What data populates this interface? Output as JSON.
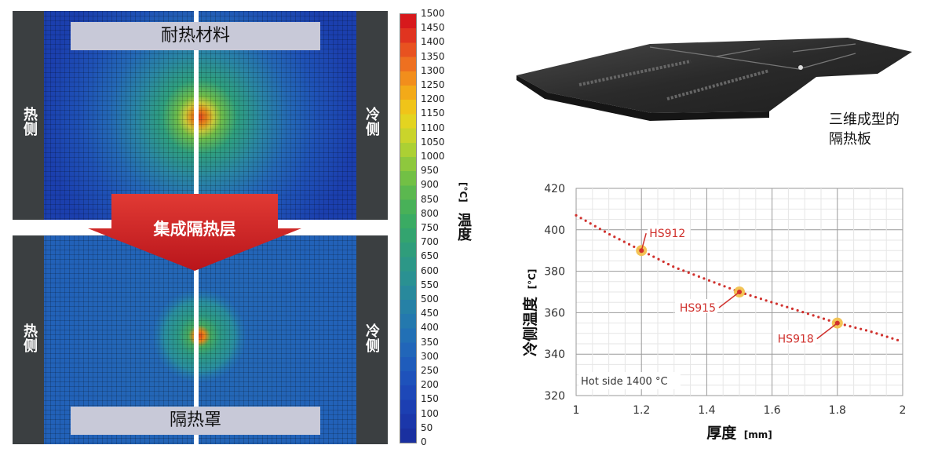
{
  "simulation": {
    "top_title": "耐热材料",
    "bottom_title": "隔热罩",
    "hot_label": "热侧",
    "cold_label": "冷侧",
    "arrow_label": "集成隔热层"
  },
  "colorbar": {
    "title": "温度",
    "unit": "[°C]",
    "ticks": [
      "1500",
      "1450",
      "1400",
      "1350",
      "1300",
      "1250",
      "1200",
      "1150",
      "1100",
      "1050",
      "1000",
      "950",
      "900",
      "850",
      "800",
      "750",
      "700",
      "650",
      "600",
      "550",
      "500",
      "450",
      "400",
      "350",
      "300",
      "250",
      "200",
      "150",
      "100",
      "50",
      "0"
    ],
    "colors": [
      "#d7191c",
      "#e03420",
      "#e85220",
      "#ee7020",
      "#f28e1c",
      "#f3aa18",
      "#f0c419",
      "#e3d420",
      "#cad42b",
      "#acd033",
      "#8ec83d",
      "#72c045",
      "#5bb84f",
      "#48b158",
      "#3aab63",
      "#33a46f",
      "#2f9d7b",
      "#2c9787",
      "#2a9192",
      "#28899c",
      "#2681a6",
      "#2479ae",
      "#2270b5",
      "#2166b9",
      "#1f5cbb",
      "#1e52bb",
      "#1d48b8",
      "#1c3fb2",
      "#1b37aa",
      "#1a30a0"
    ]
  },
  "panel": {
    "caption_line1": "三维成型的",
    "caption_line2": "隔热板"
  },
  "chart_data": {
    "type": "line",
    "xlabel": "厚度",
    "xunit": "[mm]",
    "ylabel": "冷侧温度",
    "yunit": "[°C]",
    "xlim": [
      1,
      2
    ],
    "ylim": [
      320,
      420
    ],
    "xticks": [
      "1",
      "1.2",
      "1.4",
      "1.6",
      "1.8",
      "2"
    ],
    "yticks": [
      "320",
      "340",
      "360",
      "380",
      "400",
      "420"
    ],
    "annotation": "Hot side 1400 °C",
    "grid": true,
    "series": [
      {
        "style": "dotted",
        "color": "#d0312d",
        "x": [
          1.0,
          1.1,
          1.2,
          1.3,
          1.4,
          1.5,
          1.6,
          1.7,
          1.8,
          1.9,
          2.0
        ],
        "y": [
          407,
          398,
          390,
          382,
          376,
          370,
          365,
          360,
          355,
          351,
          346
        ]
      }
    ],
    "points": [
      {
        "label": "HS912",
        "x": 1.2,
        "y": 390
      },
      {
        "label": "HS915",
        "x": 1.5,
        "y": 370
      },
      {
        "label": "HS918",
        "x": 1.8,
        "y": 355
      }
    ]
  }
}
